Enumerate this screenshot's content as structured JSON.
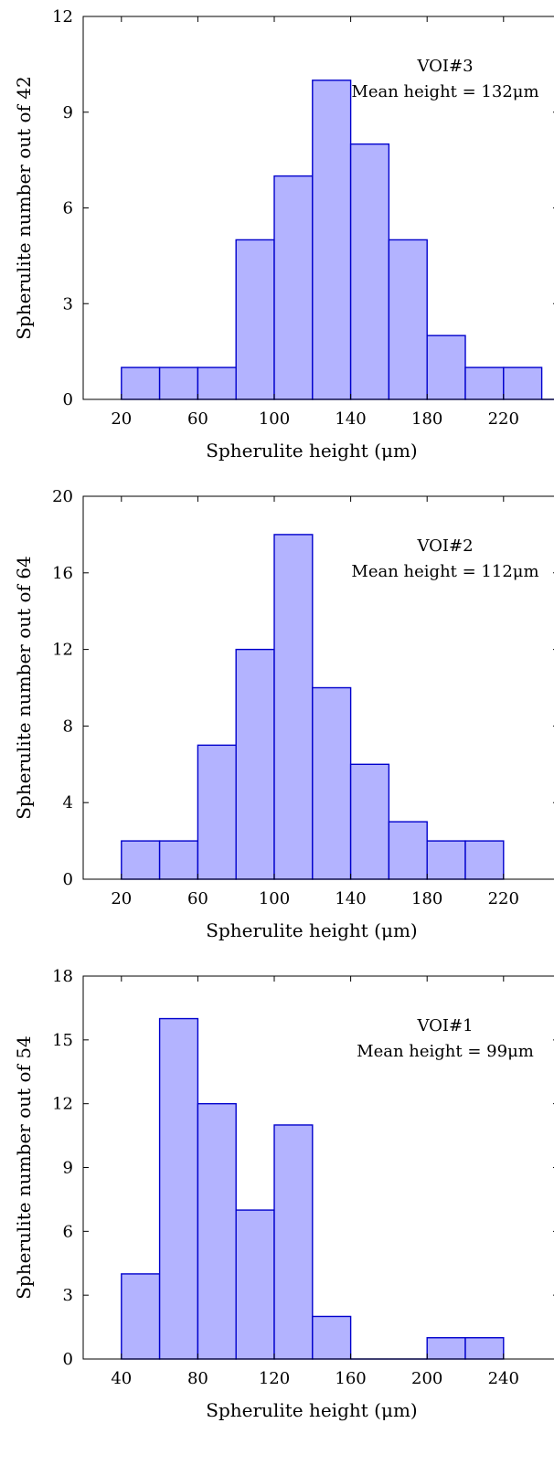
{
  "colors": {
    "bar_fill": "#b3b3ff",
    "bar_stroke": "#0000cc",
    "axis": "#000000"
  },
  "chart_data": [
    {
      "type": "bar",
      "bin_width": 20,
      "bins": [
        20,
        40,
        60,
        80,
        100,
        120,
        140,
        160,
        180,
        200,
        220,
        240
      ],
      "values": [
        1,
        1,
        1,
        5,
        7,
        10,
        8,
        5,
        2,
        1,
        1,
        0
      ],
      "xlim": [
        0,
        280
      ],
      "ylim": [
        0,
        12
      ],
      "xticks": [
        20,
        60,
        100,
        140,
        180,
        220,
        260
      ],
      "yticks": [
        0,
        3,
        6,
        9,
        12
      ],
      "xlabel": "Spherulite height (μm)",
      "ylabel": "Spherulite number out of 42",
      "annotation": [
        "VOI#3",
        "Mean height = 132μm"
      ]
    },
    {
      "type": "bar",
      "bin_width": 20,
      "bins": [
        20,
        40,
        60,
        80,
        100,
        120,
        140,
        160,
        180,
        200
      ],
      "values": [
        2,
        2,
        7,
        12,
        18,
        10,
        6,
        3,
        2,
        2
      ],
      "xlim": [
        0,
        220
      ],
      "ylim": [
        0,
        20
      ],
      "xticks": [
        20,
        60,
        100,
        140,
        180,
        220
      ],
      "yticks": [
        0,
        4,
        8,
        12,
        16,
        20
      ],
      "xlabel": "Spherulite height (μm)",
      "ylabel": "Spherulite number out of 64",
      "annotation": [
        "VOI#2",
        "Mean height = 112μm"
      ]
    },
    {
      "type": "bar",
      "bin_width": 20,
      "bins": [
        40,
        60,
        80,
        100,
        120,
        140,
        160,
        180,
        200,
        220
      ],
      "values": [
        4,
        16,
        12,
        7,
        11,
        2,
        0,
        0,
        1,
        1
      ],
      "xlim": [
        20,
        240
      ],
      "ylim": [
        0,
        18
      ],
      "xticks": [
        40,
        80,
        120,
        160,
        200,
        240
      ],
      "yticks": [
        0,
        3,
        6,
        9,
        12,
        15,
        18
      ],
      "xlabel": "Spherulite height (μm)",
      "ylabel": "Spherulite number out of 54",
      "annotation": [
        "VOI#1",
        "Mean height = 99μm"
      ]
    }
  ]
}
